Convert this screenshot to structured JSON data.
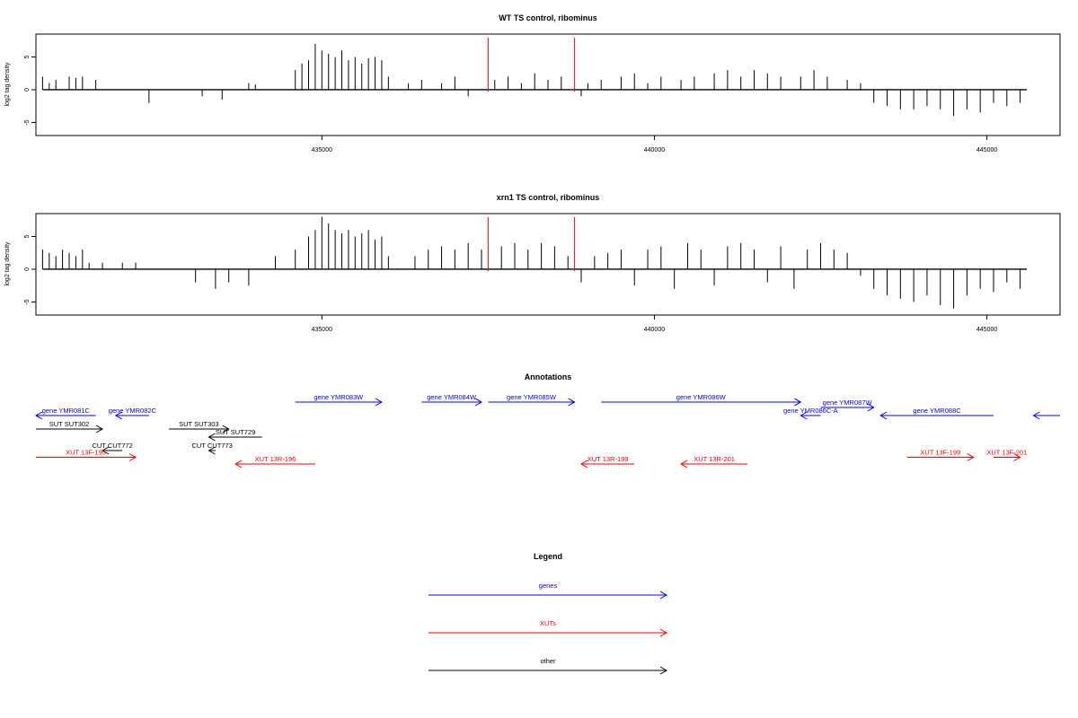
{
  "chart_data": [
    {
      "type": "bar",
      "title": "WT TS control, ribominus",
      "ylabel": "log2 tag density",
      "xlim": [
        430700,
        446100
      ],
      "ylim": [
        -7,
        8.5
      ],
      "x_ticks": [
        435000,
        440000,
        445000
      ],
      "x_tick_labels": [
        "435000",
        "440000",
        "445000"
      ],
      "y_ticks": [
        -5,
        0,
        5
      ],
      "y_tick_labels": [
        "-5",
        "0",
        "5"
      ],
      "markers": [
        437500,
        438800
      ],
      "marker_color": "#ff0000",
      "series": [
        {
          "x": [
            430800,
            430900,
            431000,
            431200,
            431300,
            431400,
            431600,
            432400,
            433200,
            433500,
            433900,
            434000,
            434600,
            434700,
            434800,
            434900,
            435000,
            435100,
            435200,
            435300,
            435400,
            435500,
            435600,
            435700,
            435800,
            435900,
            436000,
            436300,
            436500,
            436800,
            437000,
            437200,
            437600,
            437800,
            438000,
            438200,
            438400,
            438600,
            438900,
            439000,
            439200,
            439500,
            439700,
            439900,
            440100,
            440400,
            440600,
            440900,
            441100,
            441300,
            441500,
            441700,
            441900,
            442200,
            442400,
            442600,
            442900,
            443100,
            443300,
            443500,
            443700,
            443900,
            444100,
            444300,
            444500,
            444700,
            444900,
            445100,
            445300,
            445500
          ],
          "values": [
            2,
            1,
            1.5,
            2,
            1.8,
            2,
            1.5,
            -2,
            -1,
            -1.5,
            1,
            0.8,
            3,
            4,
            4.5,
            7,
            6,
            5.5,
            5,
            6,
            4.5,
            5,
            4,
            4.8,
            5,
            4.5,
            2,
            1,
            1.5,
            1,
            2,
            -1,
            1.5,
            2,
            1,
            2.5,
            1.5,
            2,
            -1,
            1,
            1.5,
            2,
            2.5,
            1,
            2,
            1.5,
            2,
            2.5,
            3,
            2,
            3,
            2.5,
            2,
            2,
            3,
            2,
            1.5,
            1,
            -2,
            -2.5,
            -3,
            -3,
            -2.5,
            -3,
            -4,
            -3,
            -3.5,
            -2,
            -2.5,
            -2
          ]
        }
      ]
    },
    {
      "type": "bar",
      "title": "xrn1 TS control, ribominus",
      "ylabel": "log2 tag density",
      "xlim": [
        430700,
        446100
      ],
      "ylim": [
        -7,
        8.5
      ],
      "x_ticks": [
        435000,
        440000,
        445000
      ],
      "x_tick_labels": [
        "435000",
        "440000",
        "445000"
      ],
      "y_ticks": [
        -5,
        0,
        5
      ],
      "y_tick_labels": [
        "-5",
        "0",
        "5"
      ],
      "markers": [
        437500,
        438800
      ],
      "marker_color": "#ff0000",
      "series": [
        {
          "x": [
            430800,
            430900,
            431000,
            431100,
            431200,
            431300,
            431400,
            431500,
            431700,
            432000,
            432200,
            433100,
            433400,
            433600,
            433900,
            434300,
            434600,
            434800,
            434900,
            435000,
            435100,
            435200,
            435300,
            435400,
            435500,
            435600,
            435700,
            435800,
            435900,
            436000,
            436400,
            436600,
            436800,
            437000,
            437200,
            437400,
            437700,
            437900,
            438100,
            438300,
            438500,
            438700,
            438900,
            439100,
            439300,
            439500,
            439700,
            439900,
            440100,
            440300,
            440500,
            440700,
            440900,
            441100,
            441300,
            441500,
            441700,
            441900,
            442100,
            442300,
            442500,
            442700,
            442900,
            443100,
            443300,
            443500,
            443700,
            443900,
            444100,
            444300,
            444500,
            444700,
            444900,
            445100,
            445300,
            445500
          ],
          "values": [
            3,
            2.5,
            2,
            3,
            2.5,
            2,
            3,
            1,
            1,
            1,
            1,
            -2,
            -3,
            -2,
            -2.5,
            2,
            3,
            5,
            6,
            8,
            7,
            6,
            5.5,
            6,
            5,
            5.5,
            6,
            4.5,
            5,
            2,
            2,
            3,
            3.5,
            3,
            4,
            3,
            3.5,
            4,
            3,
            4,
            3.5,
            2,
            -2,
            2,
            2.5,
            3,
            -2.5,
            3,
            3.5,
            -3,
            4,
            3,
            -2.5,
            3.5,
            4,
            3,
            -2,
            3.5,
            -3,
            3,
            4,
            3,
            2.5,
            -1,
            -3,
            -4,
            -4.5,
            -5,
            -4,
            -5.5,
            -6,
            -4,
            -3,
            -3.5,
            -2,
            -3
          ]
        }
      ]
    }
  ],
  "annotations": {
    "title": "Annotations",
    "features": [
      {
        "label": "gene YMR081C",
        "start": 431600,
        "end": 430700,
        "strand": "-",
        "class": "genes",
        "row": 0
      },
      {
        "label": "gene YMR082C",
        "start": 432400,
        "end": 431900,
        "strand": "-",
        "class": "genes",
        "row": 0
      },
      {
        "label": "gene YMR083W",
        "start": 434600,
        "end": 435900,
        "strand": "+",
        "class": "genes",
        "row": -1
      },
      {
        "label": "gene YMR084W",
        "start": 436500,
        "end": 437400,
        "strand": "+",
        "class": "genes",
        "row": -1
      },
      {
        "label": "gene YMR085W",
        "start": 437500,
        "end": 438800,
        "strand": "+",
        "class": "genes",
        "row": -1
      },
      {
        "label": "gene YMR086W",
        "start": 439200,
        "end": 442200,
        "strand": "+",
        "class": "genes",
        "row": -1
      },
      {
        "label": "gene YMR086C-A",
        "start": 442500,
        "end": 442200,
        "strand": "-",
        "class": "genes",
        "row": 0
      },
      {
        "label": "gene YMR087W",
        "start": 442500,
        "end": 443300,
        "strand": "+",
        "class": "genes",
        "row": -0.6
      },
      {
        "label": "gene YMR088C",
        "start": 445100,
        "end": 443400,
        "strand": "-",
        "class": "genes",
        "row": 0
      },
      {
        "label": "",
        "start": 446100,
        "end": 445700,
        "strand": "-",
        "class": "genes",
        "row": 0
      },
      {
        "label": "SUT SUT302",
        "start": 430700,
        "end": 431700,
        "strand": "+",
        "class": "other",
        "row": 1
      },
      {
        "label": "SUT SUT303",
        "start": 432700,
        "end": 433600,
        "strand": "+",
        "class": "other",
        "row": 1
      },
      {
        "label": "SUT SUT729",
        "start": 434100,
        "end": 433300,
        "strand": "-",
        "class": "other",
        "row": 1.6
      },
      {
        "label": "CUT CUT772",
        "start": 432000,
        "end": 431700,
        "strand": "-",
        "class": "other",
        "row": 2.6
      },
      {
        "label": "CUT CUT773",
        "start": 433400,
        "end": 433300,
        "strand": "-",
        "class": "other",
        "row": 2.6
      },
      {
        "label": "XUT 13F-195",
        "start": 430700,
        "end": 432200,
        "strand": "+",
        "class": "XUTs",
        "row": 3.1
      },
      {
        "label": "XUT 13R-196",
        "start": 434900,
        "end": 433700,
        "strand": "-",
        "class": "XUTs",
        "row": 3.6
      },
      {
        "label": "XUT 13R-199",
        "start": 439700,
        "end": 438900,
        "strand": "-",
        "class": "XUTs",
        "row": 3.6
      },
      {
        "label": "XUT 13R-201",
        "start": 441400,
        "end": 440400,
        "strand": "-",
        "class": "XUTs",
        "row": 3.6
      },
      {
        "label": "XUT 13F-199",
        "start": 443800,
        "end": 444800,
        "strand": "+",
        "class": "XUTs",
        "row": 3.1
      },
      {
        "label": "XUT 13F-201",
        "start": 445100,
        "end": 445500,
        "strand": "+",
        "class": "XUTs",
        "row": 3.1
      }
    ]
  },
  "legend": {
    "title": "Legend",
    "items": [
      {
        "label": "genes",
        "color": "#0000ff"
      },
      {
        "label": "XUTs",
        "color": "#ff0000"
      },
      {
        "label": "other",
        "color": "#000000"
      }
    ]
  },
  "colors": {
    "genes": "#0000ff",
    "XUTs": "#ff0000",
    "other": "#000000"
  }
}
